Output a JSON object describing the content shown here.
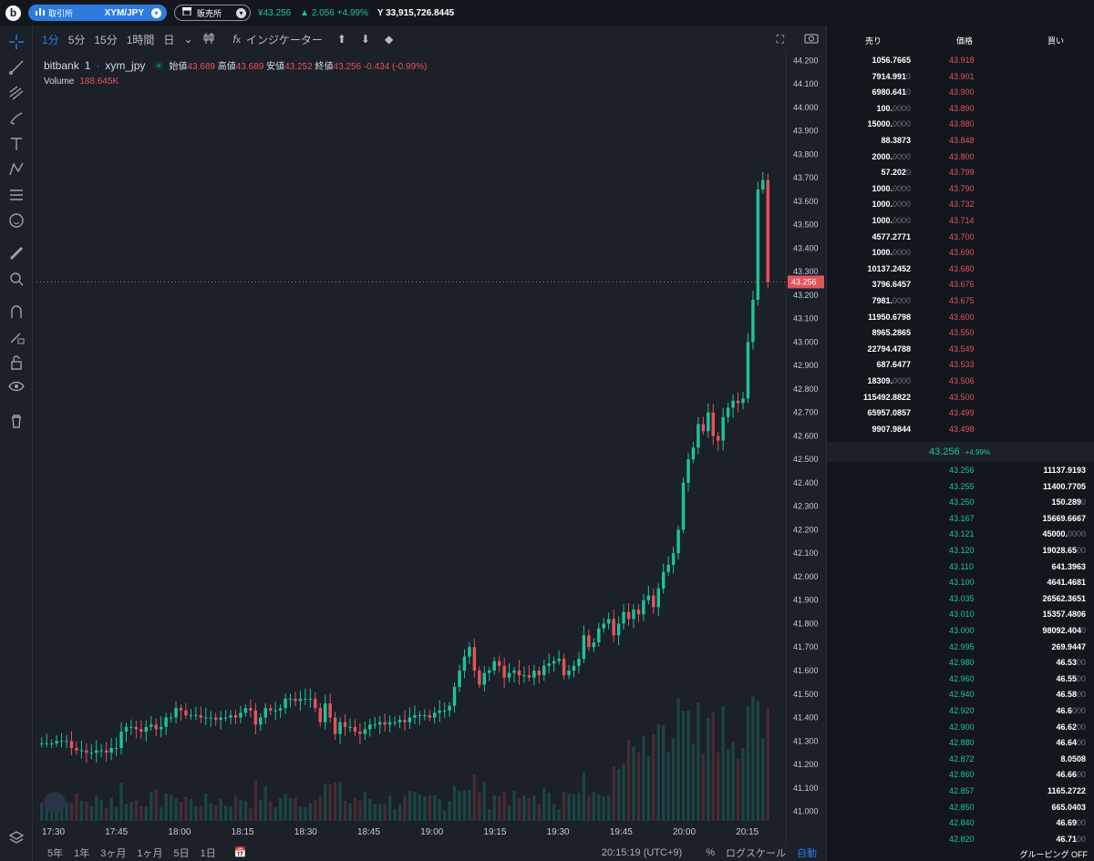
{
  "topbar": {
    "logo": "b",
    "exchange_label": "取引所",
    "pair": "XYM/JPY",
    "sales_label": "販売所",
    "price": "43.256",
    "change": "2.056 +4.99%",
    "volume": "33,915,726.8445"
  },
  "charttools": {
    "intervals": [
      "1分",
      "5分",
      "15分",
      "1時間",
      "日"
    ],
    "indicators": "インジケーター"
  },
  "legend": {
    "exchange": "bitbank",
    "interval": "1",
    "symbol": "xym_jpy",
    "open_label": "始値",
    "open": "43.689",
    "high_label": "高値",
    "high": "43.689",
    "low_label": "安値",
    "low": "43.252",
    "close_label": "終値",
    "close": "43.256",
    "change": "-0.434 (-0.99%)",
    "volume_label": "Volume",
    "volume": "188.645K"
  },
  "chart_data": {
    "type": "candlestick",
    "y_ticks": [
      "44.200",
      "44.100",
      "44.000",
      "43.900",
      "43.800",
      "43.700",
      "43.600",
      "43.500",
      "43.400",
      "43.300",
      "43.200",
      "43.100",
      "43.000",
      "42.900",
      "42.800",
      "42.700",
      "42.600",
      "42.500",
      "42.400",
      "42.300",
      "42.200",
      "42.100",
      "42.000",
      "41.900",
      "41.800",
      "41.700",
      "41.600",
      "41.500",
      "41.400",
      "41.300",
      "41.200",
      "41.100",
      "41.000"
    ],
    "x_ticks": [
      "17:30",
      "17:45",
      "18:00",
      "18:15",
      "18:30",
      "18:45",
      "19:00",
      "19:15",
      "19:30",
      "19:45",
      "20:00",
      "20:15"
    ],
    "ylim": [
      40.94,
      44.24
    ],
    "last_price": "43.256",
    "closes": [
      41.29,
      41.29,
      41.29,
      41.3,
      41.3,
      41.3,
      41.27,
      41.26,
      41.26,
      41.25,
      41.25,
      41.26,
      41.26,
      41.25,
      41.27,
      41.27,
      41.34,
      41.36,
      41.36,
      41.35,
      41.34,
      41.36,
      41.37,
      41.35,
      41.36,
      41.4,
      41.4,
      41.44,
      41.43,
      41.41,
      41.41,
      41.41,
      41.4,
      41.4,
      41.4,
      41.39,
      41.4,
      41.4,
      41.41,
      41.4,
      41.42,
      41.44,
      41.43,
      41.37,
      41.4,
      41.44,
      41.43,
      41.43,
      41.44,
      41.48,
      41.48,
      41.47,
      41.48,
      41.48,
      41.48,
      41.44,
      41.38,
      41.46,
      41.4,
      41.33,
      41.38,
      41.36,
      41.36,
      41.34,
      41.33,
      41.35,
      41.37,
      41.37,
      41.38,
      41.37,
      41.38,
      41.38,
      41.39,
      41.38,
      41.4,
      41.41,
      41.41,
      41.41,
      41.4,
      41.42,
      41.43,
      41.43,
      41.45,
      41.53,
      41.6,
      41.66,
      41.7,
      41.6,
      41.54,
      41.59,
      41.6,
      41.64,
      41.62,
      41.57,
      41.59,
      41.6,
      41.58,
      41.58,
      41.57,
      41.6,
      41.58,
      41.62,
      41.63,
      41.64,
      41.65,
      41.58,
      41.6,
      41.62,
      41.65,
      41.75,
      41.7,
      41.72,
      41.78,
      41.8,
      41.82,
      41.75,
      41.8,
      41.85,
      41.82,
      41.86,
      41.84,
      41.9,
      41.92,
      41.87,
      41.95,
      42.02,
      42.05,
      42.1,
      42.2,
      42.4,
      42.5,
      42.55,
      42.65,
      42.62,
      42.7,
      42.6,
      42.58,
      42.68,
      42.72,
      42.75,
      42.74,
      42.76,
      43.0,
      43.18,
      43.65,
      43.69,
      43.256
    ],
    "volume_label": "188.645K"
  },
  "bottombar": {
    "ranges": [
      "5年",
      "1年",
      "3ヶ月",
      "1ヶ月",
      "5日",
      "1日"
    ],
    "time": "20:15:19 (UTC+9)",
    "percent": "%",
    "log": "ログスケール",
    "auto": "自動"
  },
  "orderbook": {
    "head_sell": "売り",
    "head_price": "価格",
    "head_buy": "買い",
    "asks": [
      {
        "qty": "1056.7665",
        "price": "43.918"
      },
      {
        "qty": "7914.9910",
        "price": "43.901"
      },
      {
        "qty": "6980.6410",
        "price": "43.900"
      },
      {
        "qty": "100.0000",
        "price": "43.890"
      },
      {
        "qty": "15000.0000",
        "price": "43.880"
      },
      {
        "qty": "88.3873",
        "price": "43.848"
      },
      {
        "qty": "2000.0000",
        "price": "43.800"
      },
      {
        "qty": "57.2020",
        "price": "43.799"
      },
      {
        "qty": "1000.0000",
        "price": "43.790"
      },
      {
        "qty": "1000.0000",
        "price": "43.732"
      },
      {
        "qty": "1000.0000",
        "price": "43.714"
      },
      {
        "qty": "4577.2771",
        "price": "43.700"
      },
      {
        "qty": "1000.0000",
        "price": "43.690"
      },
      {
        "qty": "10137.2452",
        "price": "43.680"
      },
      {
        "qty": "3796.6457",
        "price": "43.676"
      },
      {
        "qty": "7981.0000",
        "price": "43.675"
      },
      {
        "qty": "11950.6798",
        "price": "43.600"
      },
      {
        "qty": "8965.2865",
        "price": "43.550"
      },
      {
        "qty": "22794.4788",
        "price": "43.549"
      },
      {
        "qty": "687.6477",
        "price": "43.533"
      },
      {
        "qty": "18309.0000",
        "price": "43.506"
      },
      {
        "qty": "115492.8822",
        "price": "43.500"
      },
      {
        "qty": "65957.0857",
        "price": "43.499"
      },
      {
        "qty": "9907.9844",
        "price": "43.498"
      }
    ],
    "mid_price": "43.256",
    "mid_change": "+4.99%",
    "bids": [
      {
        "qty": "11137.9193",
        "price": "43.256"
      },
      {
        "qty": "11400.7705",
        "price": "43.255"
      },
      {
        "qty": "150.2890",
        "price": "43.250"
      },
      {
        "qty": "15669.6667",
        "price": "43.167"
      },
      {
        "qty": "45000.0000",
        "price": "43.121"
      },
      {
        "qty": "19028.6500",
        "price": "43.120"
      },
      {
        "qty": "641.3963",
        "price": "43.110"
      },
      {
        "qty": "4641.4681",
        "price": "43.100"
      },
      {
        "qty": "26562.3651",
        "price": "43.035"
      },
      {
        "qty": "15357.4806",
        "price": "43.010"
      },
      {
        "qty": "98092.4040",
        "price": "43.000"
      },
      {
        "qty": "269.9447",
        "price": "42.995"
      },
      {
        "qty": "46.5300",
        "price": "42.980"
      },
      {
        "qty": "46.5500",
        "price": "42.960"
      },
      {
        "qty": "46.5800",
        "price": "42.940"
      },
      {
        "qty": "46.6000",
        "price": "42.920"
      },
      {
        "qty": "46.6200",
        "price": "42.900"
      },
      {
        "qty": "46.6400",
        "price": "42.880"
      },
      {
        "qty": "8.0508",
        "price": "42.872"
      },
      {
        "qty": "46.6600",
        "price": "42.860"
      },
      {
        "qty": "1165.2722",
        "price": "42.857"
      },
      {
        "qty": "665.0403",
        "price": "42.850"
      },
      {
        "qty": "46.6900",
        "price": "42.840"
      },
      {
        "qty": "46.7100",
        "price": "42.820"
      }
    ],
    "footer": "グルーピング OFF"
  }
}
